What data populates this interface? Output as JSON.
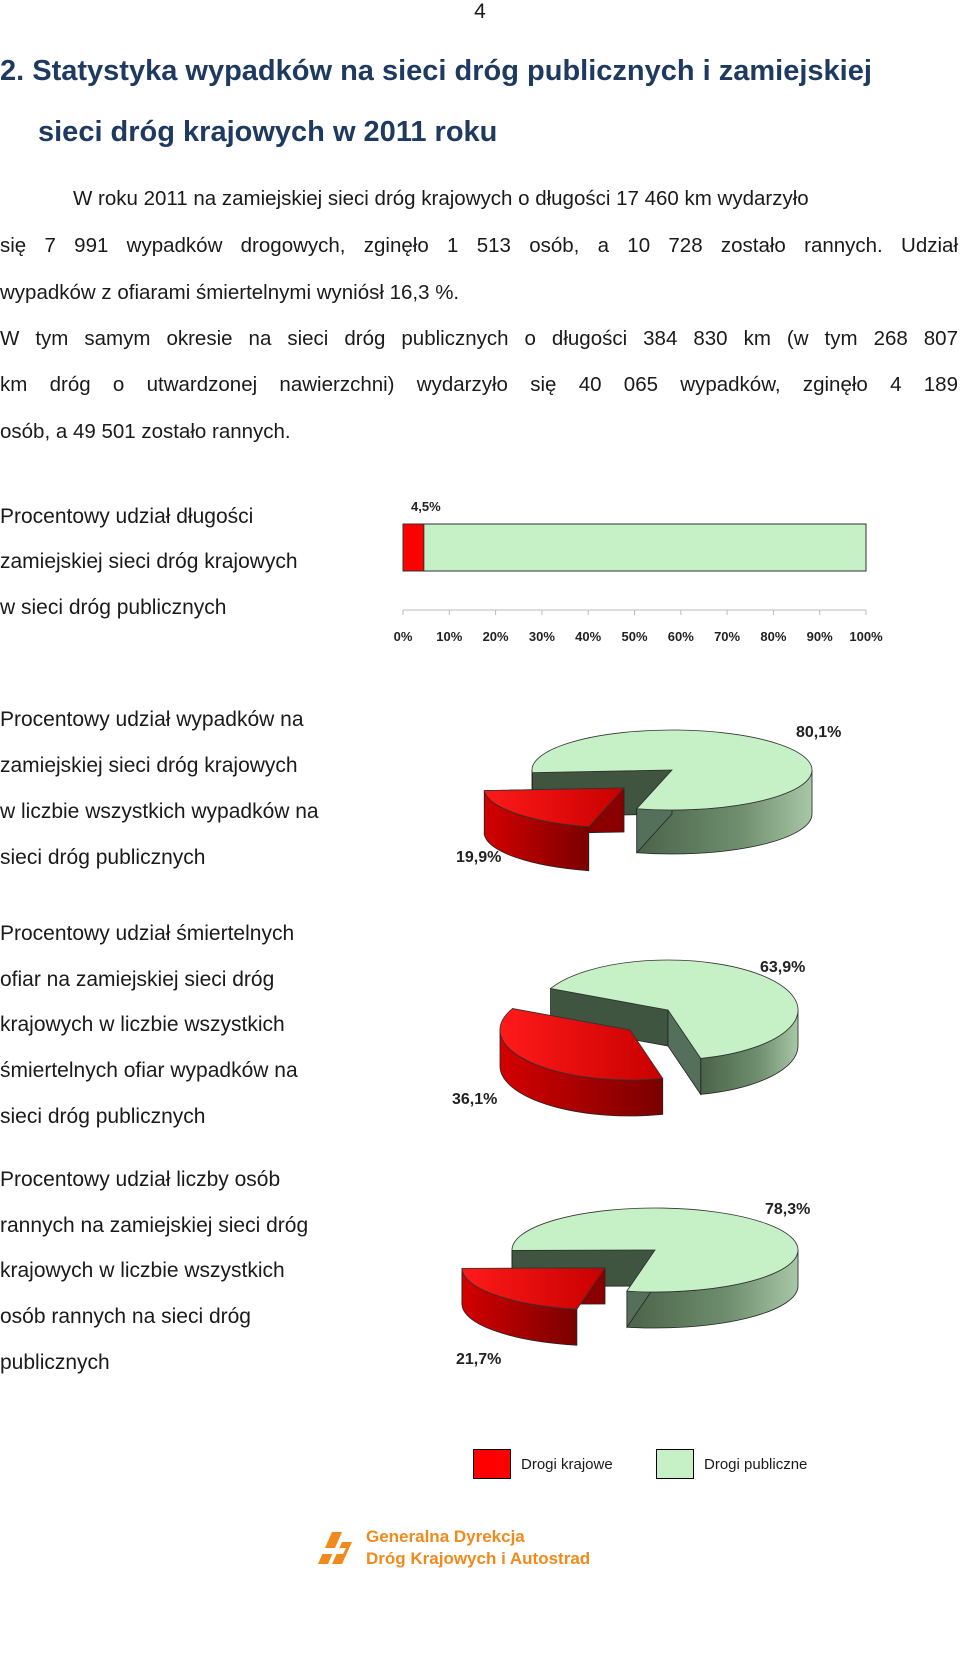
{
  "page_number": "4",
  "heading": {
    "line1": "2. Statystyka wypadków na sieci dróg publicznych i zamiejskiej",
    "line2": "sieci dróg krajowych w 2011 roku"
  },
  "paragraph1": [
    "W roku 2011 na zamiejskiej sieci dróg krajowych o długości 17 460 km wydarzyło",
    "się 7 991 wypadków drogowych, zginęło 1 513 osób, a 10 728 zostało rannych. Udział",
    "wypadków z ofiarami śmiertelnymi wyniósł 16,3 %."
  ],
  "paragraph2": [
    "W tym samym okresie na sieci dróg publicznych o długości 384 830 km (w tym 268 807",
    "km dróg o utwardzonej nawierzchni) wydarzyło się 40 065 wypadków, zginęło 4 189",
    "osób, a 49 501 zostało rannych."
  ],
  "chart_labels": [
    [
      "Procentowy udział długości",
      "zamiejskiej sieci dróg krajowych",
      "w sieci dróg publicznych"
    ],
    [
      "Procentowy udział wypadków na",
      "zamiejskiej sieci dróg krajowych",
      "w liczbie wszystkich wypadków na",
      "sieci dróg publicznych"
    ],
    [
      "Procentowy udział śmiertelnych",
      "ofiar na zamiejskiej sieci dróg",
      "krajowych w liczbie wszystkich",
      "śmiertelnych ofiar wypadków na",
      "sieci dróg publicznych"
    ],
    [
      "Procentowy udział liczby osób",
      "rannych na zamiejskiej sieci dróg",
      "krajowych w liczbie wszystkich",
      "osób rannych na sieci dróg",
      "publicznych"
    ]
  ],
  "colors": {
    "krajowe": "#ff0000",
    "krajowe_dark": "#a00000",
    "publiczne": "#c6f0c6",
    "publiczne_side": "#5e7a5e",
    "heading": "#1f3a60",
    "logo": "#f08a1c"
  },
  "chart_data": [
    {
      "type": "bar",
      "orientation": "horizontal",
      "stacked": true,
      "categories": [
        ""
      ],
      "series": [
        {
          "name": "Drogi krajowe",
          "values": [
            4.5
          ]
        },
        {
          "name": "Drogi publiczne",
          "values": [
            95.5
          ]
        }
      ],
      "data_labels": [
        "4,5%"
      ],
      "xlim": [
        0,
        100
      ],
      "x_ticks": [
        "0%",
        "10%",
        "20%",
        "30%",
        "40%",
        "50%",
        "60%",
        "70%",
        "80%",
        "90%",
        "100%"
      ],
      "grid": false
    },
    {
      "type": "pie",
      "labels": [
        "Drogi krajowe",
        "Drogi publiczne"
      ],
      "values": [
        19.9,
        80.1
      ],
      "data_labels": [
        "19,9%",
        "80,1%"
      ]
    },
    {
      "type": "pie",
      "labels": [
        "Drogi krajowe",
        "Drogi publiczne"
      ],
      "values": [
        36.1,
        63.9
      ],
      "data_labels": [
        "36,1%",
        "63,9%"
      ]
    },
    {
      "type": "pie",
      "labels": [
        "Drogi krajowe",
        "Drogi publiczne"
      ],
      "values": [
        21.7,
        78.3
      ],
      "data_labels": [
        "21,7%",
        "78,3%"
      ]
    }
  ],
  "legend": {
    "items": [
      {
        "label": "Drogi krajowe"
      },
      {
        "label": "Drogi publiczne"
      }
    ]
  },
  "footer": {
    "line1": "Generalna Dyrekcja",
    "line2": "Dróg Krajowych i Autostrad",
    "logo_icon": "gddkia-logo-icon"
  }
}
